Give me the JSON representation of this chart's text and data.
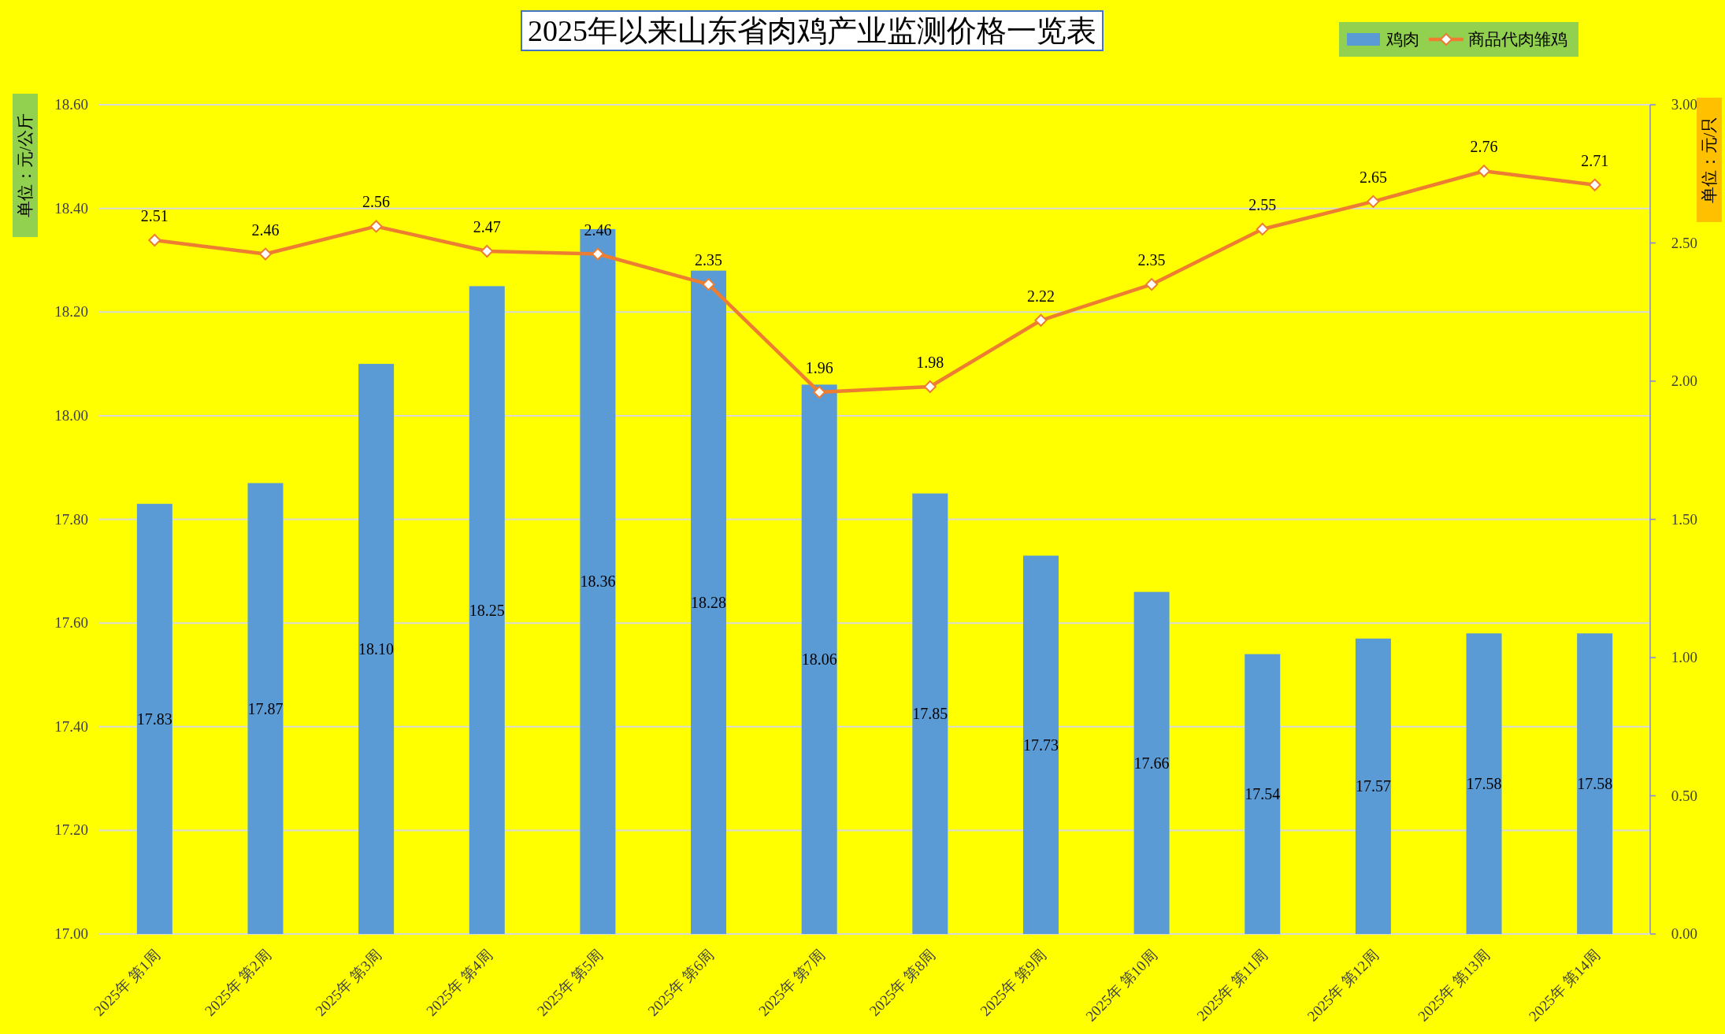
{
  "chart_data": {
    "type": "bar",
    "title": "2025年以来山东省肉鸡产业监测价格一览表",
    "ylabel": "单位：元/公斤",
    "y2label": "单位：元/只",
    "categories": [
      "2025年 第1周",
      "2025年 第2周",
      "2025年 第3周",
      "2025年 第4周",
      "2025年 第5周",
      "2025年 第6周",
      "2025年 第7周",
      "2025年 第8周",
      "2025年 第9周",
      "2025年 第10周",
      "2025年 第11周",
      "2025年 第12周",
      "2025年 第13周",
      "2025年 第14周"
    ],
    "series": [
      {
        "name": "鸡肉",
        "color": "#5b9bd5",
        "values": [
          17.83,
          17.87,
          18.1,
          18.25,
          18.36,
          18.28,
          18.06,
          17.85,
          17.73,
          17.66,
          17.54,
          17.57,
          17.58,
          17.58
        ],
        "value_labels": [
          "17.83",
          "17.87",
          "18.10",
          "18.25",
          "18.36",
          "18.28",
          "18.06",
          "17.85",
          "17.73",
          "17.66",
          "17.54",
          "17.57",
          "17.58",
          "17.58"
        ]
      },
      {
        "name": "商品代肉雏鸡",
        "type": "line",
        "axis": "y2",
        "color": "#ed7d31",
        "marker": "diamond",
        "values": [
          2.51,
          2.46,
          2.56,
          2.47,
          2.46,
          2.35,
          1.96,
          1.98,
          2.22,
          2.35,
          2.55,
          2.65,
          2.76,
          2.71
        ],
        "value_labels": [
          "2.51",
          "2.46",
          "2.56",
          "2.47",
          "2.46",
          "2.35",
          "1.96",
          "1.98",
          "2.22",
          "2.35",
          "2.55",
          "2.65",
          "2.76",
          "2.71"
        ]
      }
    ],
    "ylim": [
      17,
      18.6
    ],
    "yticks": [
      {
        "value": 17,
        "label": "17.00"
      },
      {
        "value": 17.2,
        "label": "17.20"
      },
      {
        "value": 17.4,
        "label": "17.40"
      },
      {
        "value": 17.6,
        "label": "17.60"
      },
      {
        "value": 17.8,
        "label": "17.80"
      },
      {
        "value": 18,
        "label": "18.00"
      },
      {
        "value": 18.2,
        "label": "18.20"
      },
      {
        "value": 18.4,
        "label": "18.40"
      },
      {
        "value": 18.6,
        "label": "18.60"
      }
    ],
    "y2lim": [
      0,
      3
    ],
    "y2ticks": [
      {
        "value": 0,
        "label": "0.00"
      },
      {
        "value": 0.5,
        "label": "0.50"
      },
      {
        "value": 1,
        "label": "1.00"
      },
      {
        "value": 1.5,
        "label": "1.50"
      },
      {
        "value": 2,
        "label": "2.00"
      },
      {
        "value": 2.5,
        "label": "2.50"
      },
      {
        "value": 3,
        "label": "3.00"
      }
    ],
    "grid": "y",
    "legend": "top right",
    "line_style": "solid"
  }
}
